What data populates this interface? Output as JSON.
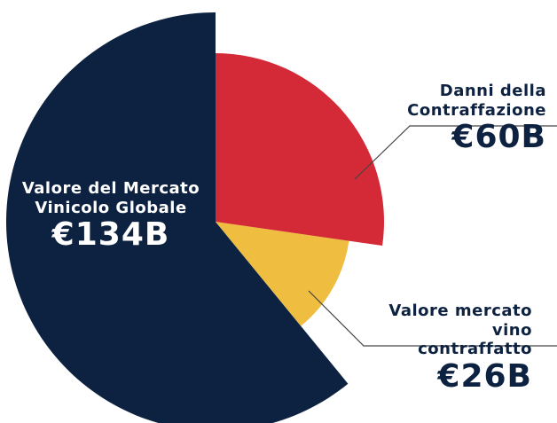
{
  "chart_data": {
    "type": "pie",
    "categories": [
      "Danni della Contraffazione",
      "Valore mercato vino contraffatto",
      "Valore del Mercato Vinicolo Globale"
    ],
    "values": [
      60,
      26,
      134
    ],
    "value_labels": [
      "€60B",
      "€26B",
      "€134B"
    ],
    "colors": [
      "#d42a37",
      "#efbd40",
      "#0d2240"
    ]
  }
}
